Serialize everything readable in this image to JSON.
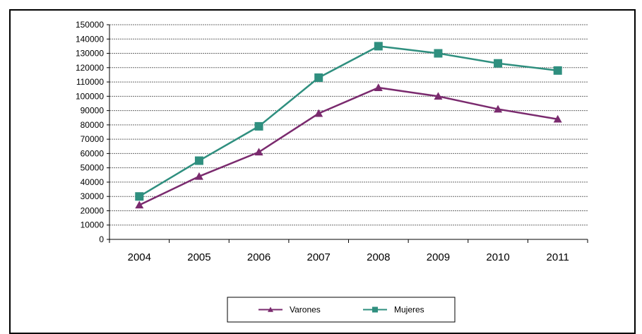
{
  "chart_data": {
    "type": "line",
    "categories": [
      "2004",
      "2005",
      "2006",
      "2007",
      "2008",
      "2009",
      "2010",
      "2011"
    ],
    "ylim": [
      0,
      150000
    ],
    "ytick_step": 10000,
    "yticks": [
      "0",
      "10000",
      "20000",
      "30000",
      "40000",
      "50000",
      "60000",
      "70000",
      "80000",
      "90000",
      "100000",
      "110000",
      "120000",
      "130000",
      "140000",
      "150000"
    ],
    "grid": true,
    "legend_position": "bottom",
    "series": [
      {
        "name": "Varones",
        "color": "#7a2a6e",
        "marker": "triangle",
        "values": [
          24000,
          44000,
          61000,
          88000,
          106000,
          100000,
          91000,
          84000
        ]
      },
      {
        "name": "Mujeres",
        "color": "#2f8f7f",
        "marker": "square",
        "values": [
          30000,
          55000,
          79000,
          113000,
          135000,
          130000,
          123000,
          118000
        ]
      }
    ]
  }
}
